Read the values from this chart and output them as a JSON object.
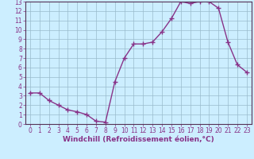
{
  "x": [
    0,
    1,
    2,
    3,
    4,
    5,
    6,
    7,
    8,
    9,
    10,
    11,
    12,
    13,
    14,
    15,
    16,
    17,
    18,
    19,
    20,
    21,
    22,
    23
  ],
  "y": [
    3.3,
    3.3,
    2.5,
    2.0,
    1.5,
    1.3,
    1.0,
    0.3,
    0.2,
    4.5,
    7.0,
    8.5,
    8.5,
    8.7,
    9.8,
    11.2,
    13.0,
    12.8,
    13.0,
    13.0,
    12.3,
    8.7,
    6.3,
    5.5
  ],
  "line_color": "#883388",
  "marker": "+",
  "marker_size": 4,
  "marker_lw": 1.0,
  "bg_color": "#cceeff",
  "grid_color": "#99bbcc",
  "xlabel": "Windchill (Refroidissement éolien,°C)",
  "xlim": [
    -0.5,
    23.5
  ],
  "ylim": [
    0,
    13
  ],
  "xticks": [
    0,
    1,
    2,
    3,
    4,
    5,
    6,
    7,
    8,
    9,
    10,
    11,
    12,
    13,
    14,
    15,
    16,
    17,
    18,
    19,
    20,
    21,
    22,
    23
  ],
  "yticks": [
    0,
    1,
    2,
    3,
    4,
    5,
    6,
    7,
    8,
    9,
    10,
    11,
    12,
    13
  ],
  "tick_fontsize": 5.5,
  "xlabel_fontsize": 6.5,
  "spine_color": "#553355",
  "linewidth": 1.0
}
